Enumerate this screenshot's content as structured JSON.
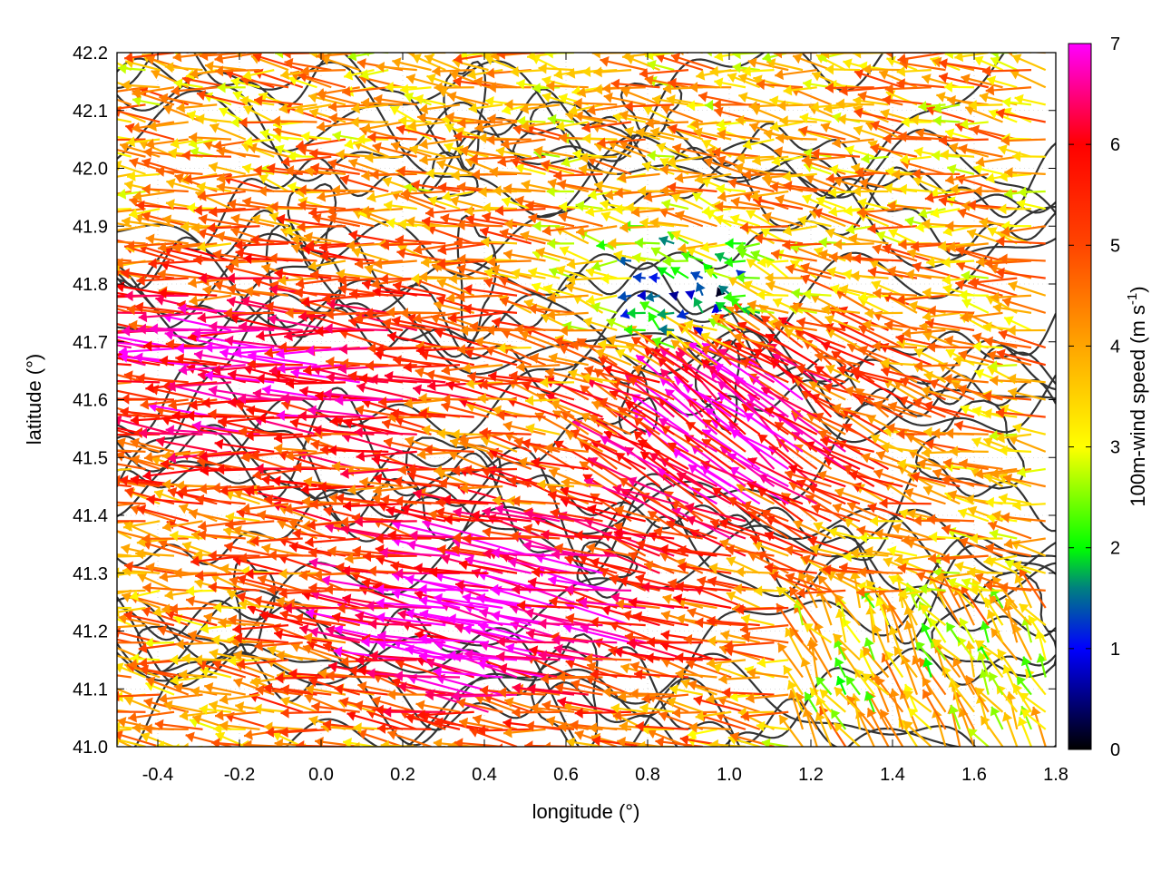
{
  "chart_data": {
    "type": "quiver",
    "xlabel": "longitude (°)",
    "ylabel": "latitude (°)",
    "xlim": [
      -0.5,
      1.8
    ],
    "ylim": [
      41.0,
      42.2
    ],
    "xticks": [
      -0.4,
      -0.2,
      0.0,
      0.2,
      0.4,
      0.6,
      0.8,
      1.0,
      1.2,
      1.4,
      1.6,
      1.8
    ],
    "xtick_labels": [
      "-0.4",
      "-0.2",
      "0.0",
      "0.2",
      "0.4",
      "0.6",
      "0.8",
      "1.0",
      "1.2",
      "1.4",
      "1.6",
      "1.8"
    ],
    "yticks": [
      41.0,
      41.1,
      41.2,
      41.3,
      41.4,
      41.5,
      41.6,
      41.7,
      41.8,
      41.9,
      42.0,
      42.1,
      42.2
    ],
    "ytick_labels": [
      "41.0",
      "41.1",
      "41.2",
      "41.3",
      "41.4",
      "41.5",
      "41.6",
      "41.7",
      "41.8",
      "41.9",
      "42.0",
      "42.1",
      "42.2"
    ],
    "colorbar": {
      "label_main": "100m-wind speed (m s",
      "label_sup": "-1",
      "label_end": ")",
      "range": [
        0,
        7
      ],
      "ticks": [
        0,
        1,
        2,
        3,
        4,
        5,
        6,
        7
      ],
      "tick_labels": [
        "0",
        "1",
        "2",
        "3",
        "4",
        "5",
        "6",
        "7"
      ],
      "stops": [
        {
          "value": 0,
          "color": "#000000"
        },
        {
          "value": 1,
          "color": "#0000ff"
        },
        {
          "value": 1.6,
          "color": "#008080"
        },
        {
          "value": 2,
          "color": "#00ff00"
        },
        {
          "value": 3,
          "color": "#ffff00"
        },
        {
          "value": 4,
          "color": "#ffa500"
        },
        {
          "value": 5,
          "color": "#ff4500"
        },
        {
          "value": 6,
          "color": "#ff0000"
        },
        {
          "value": 7,
          "color": "#ff00ff"
        }
      ]
    },
    "grid": true,
    "contour_color": "#333333",
    "wind_field_regions": [
      {
        "lon": [
          -0.5,
          0.3
        ],
        "lat": [
          41.4,
          41.9
        ],
        "speed": 5.8,
        "direction": "westward"
      },
      {
        "lon": [
          0.1,
          0.9
        ],
        "lat": [
          41.0,
          41.4
        ],
        "speed": 6.9,
        "direction": "westward"
      },
      {
        "lon": [
          0.7,
          1.4
        ],
        "lat": [
          41.4,
          41.7
        ],
        "speed": 6.8,
        "direction": "northwestward"
      },
      {
        "lon": [
          0.7,
          1.1
        ],
        "lat": [
          41.7,
          41.85
        ],
        "speed": 1.2,
        "direction": "variable"
      },
      {
        "lon": [
          1.2,
          1.8
        ],
        "lat": [
          41.0,
          41.25
        ],
        "speed": 3.8,
        "direction": "northwestward"
      },
      {
        "lon": [
          -0.5,
          1.8
        ],
        "lat": [
          41.9,
          42.2
        ],
        "speed": 3.5,
        "direction": "westward"
      }
    ]
  }
}
